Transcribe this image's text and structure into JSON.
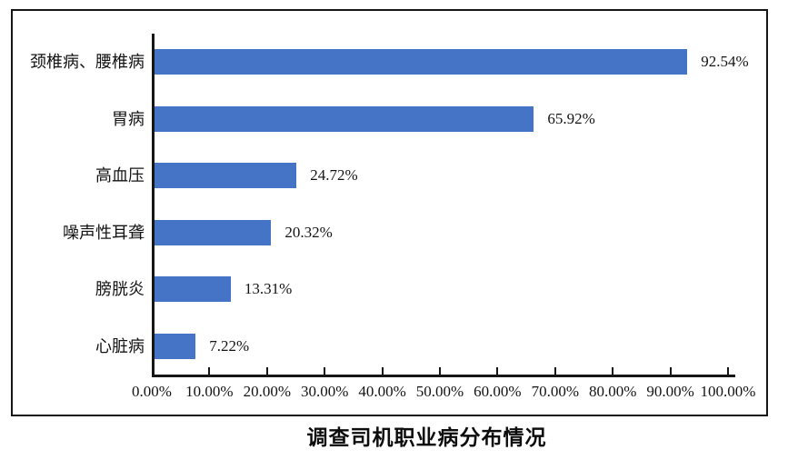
{
  "chart_data": {
    "type": "bar",
    "orientation": "horizontal",
    "title": "调查司机职业病分布情况",
    "categories": [
      "颈椎病、腰椎病",
      "胃病",
      "高血压",
      "噪声性耳聋",
      "膀胱炎",
      "心脏病"
    ],
    "values": [
      92.54,
      65.92,
      24.72,
      20.32,
      13.31,
      7.22
    ],
    "value_labels": [
      "92.54%",
      "65.92%",
      "24.72%",
      "20.32%",
      "13.31%",
      "7.22%"
    ],
    "x_ticks": [
      "0.00%",
      "10.00%",
      "20.00%",
      "30.00%",
      "40.00%",
      "50.00%",
      "60.00%",
      "70.00%",
      "80.00%",
      "90.00%",
      "100.00%"
    ],
    "xlim": [
      0,
      100
    ],
    "xlabel": "",
    "ylabel": "",
    "grid": false,
    "legend": false,
    "bar_color": "#4573C6",
    "axis_color": "#161616",
    "border_color": "#161616",
    "text_color": "#141414"
  }
}
